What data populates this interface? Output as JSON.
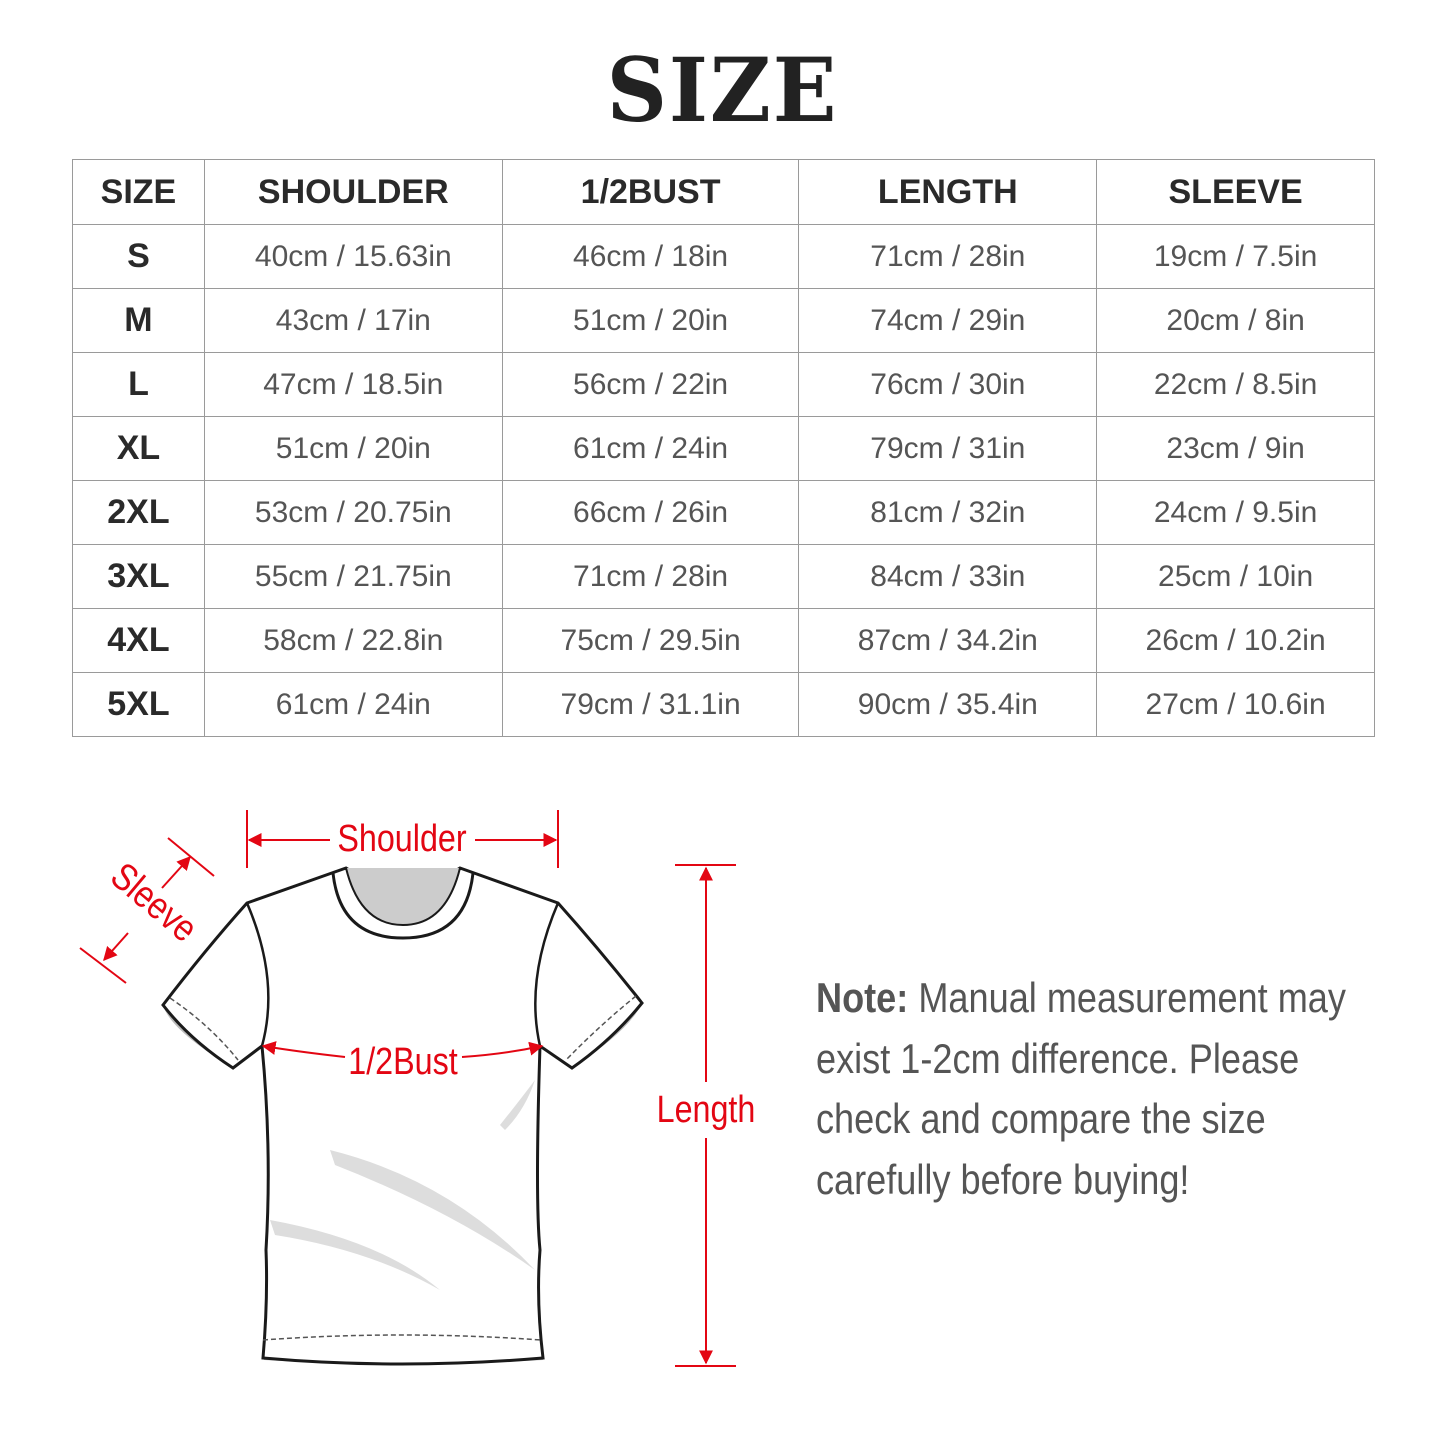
{
  "title": "SIZE",
  "table": {
    "headers": [
      "SIZE",
      "SHOULDER",
      "1/2BUST",
      "LENGTH",
      "SLEEVE"
    ],
    "rows": [
      [
        "S",
        "40cm / 15.63in",
        "46cm / 18in",
        "71cm / 28in",
        "19cm / 7.5in"
      ],
      [
        "M",
        "43cm / 17in",
        "51cm / 20in",
        "74cm / 29in",
        "20cm / 8in"
      ],
      [
        "L",
        "47cm / 18.5in",
        "56cm / 22in",
        "76cm / 30in",
        "22cm / 8.5in"
      ],
      [
        "XL",
        "51cm / 20in",
        "61cm / 24in",
        "79cm / 31in",
        "23cm / 9in"
      ],
      [
        "2XL",
        "53cm / 20.75in",
        "66cm / 26in",
        "81cm / 32in",
        "24cm / 9.5in"
      ],
      [
        "3XL",
        "55cm / 21.75in",
        "71cm / 28in",
        "84cm / 33in",
        "25cm / 10in"
      ],
      [
        "4XL",
        "58cm / 22.8in",
        "75cm / 29.5in",
        "87cm / 34.2in",
        "26cm / 10.2in"
      ],
      [
        "5XL",
        "61cm / 24in",
        "79cm / 31.1in",
        "90cm / 35.4in",
        "27cm / 10.6in"
      ]
    ]
  },
  "diagram": {
    "shoulder_label": "Shoulder",
    "sleeve_label": "Sleeve",
    "bust_label": "1/2Bust",
    "length_label": "Length",
    "accent_color": "#e30613"
  },
  "note": {
    "label": "Note:",
    "text": "Manual measurement may exist 1-2cm difference. Please check and compare the size carefully before buying!"
  }
}
